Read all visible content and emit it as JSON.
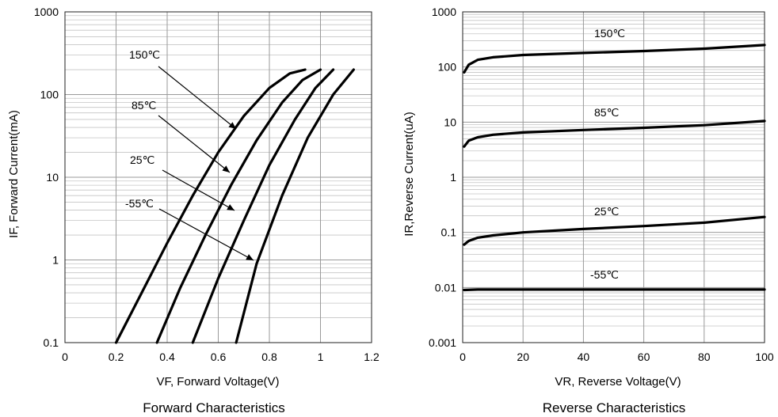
{
  "chart_data": [
    {
      "type": "line",
      "title": "Forward Characteristics",
      "xlabel": "VF, Forward Voltage(V)",
      "ylabel": "IF, Forward Current(mA)",
      "xlim": [
        0,
        1.2
      ],
      "ylim": [
        0.1,
        1000
      ],
      "yscale": "log",
      "grid": true,
      "xticks": [
        "0",
        "0.2",
        "0.4",
        "0.6",
        "0.8",
        "1",
        "1.2"
      ],
      "yticks": [
        "0.1",
        "1",
        "10",
        "100",
        "1000"
      ],
      "series": [
        {
          "name": "150℃",
          "x": [
            0.2,
            0.3,
            0.4,
            0.5,
            0.6,
            0.7,
            0.8,
            0.88,
            0.94
          ],
          "y": [
            0.1,
            0.4,
            1.6,
            6,
            20,
            55,
            120,
            180,
            200
          ]
        },
        {
          "name": "85℃",
          "x": [
            0.36,
            0.45,
            0.55,
            0.65,
            0.75,
            0.85,
            0.93,
            1.0
          ],
          "y": [
            0.1,
            0.45,
            2,
            8,
            28,
            80,
            150,
            200
          ]
        },
        {
          "name": "25℃",
          "x": [
            0.5,
            0.6,
            0.7,
            0.8,
            0.9,
            0.98,
            1.05
          ],
          "y": [
            0.1,
            0.6,
            3,
            14,
            50,
            120,
            200
          ]
        },
        {
          "name": "-55℃",
          "x": [
            0.67,
            0.75,
            0.85,
            0.95,
            1.05,
            1.13
          ],
          "y": [
            0.1,
            0.9,
            6,
            30,
            100,
            200
          ]
        }
      ]
    },
    {
      "type": "line",
      "title": "Reverse Characteristics",
      "xlabel": "VR, Reverse Voltage(V)",
      "ylabel": "IR,Reverse Current(uA)",
      "xlim": [
        0,
        100
      ],
      "ylim": [
        0.001,
        1000
      ],
      "yscale": "log",
      "grid": true,
      "xticks": [
        "0",
        "20",
        "40",
        "60",
        "80",
        "100"
      ],
      "yticks": [
        "0.001",
        "0.01",
        "0.1",
        "1",
        "10",
        "100",
        "1000"
      ],
      "series": [
        {
          "name": "150℃",
          "x": [
            0.5,
            2,
            5,
            10,
            20,
            40,
            60,
            80,
            100
          ],
          "y": [
            80,
            110,
            135,
            150,
            165,
            180,
            195,
            215,
            250
          ]
        },
        {
          "name": "85℃",
          "x": [
            0.5,
            2,
            5,
            10,
            20,
            40,
            60,
            80,
            100
          ],
          "y": [
            3.6,
            4.6,
            5.3,
            5.9,
            6.5,
            7.2,
            7.9,
            8.8,
            10.5
          ]
        },
        {
          "name": "25℃",
          "x": [
            0.5,
            2,
            5,
            10,
            20,
            40,
            60,
            80,
            100
          ],
          "y": [
            0.06,
            0.07,
            0.08,
            0.088,
            0.1,
            0.115,
            0.13,
            0.15,
            0.19
          ]
        },
        {
          "name": "-55℃",
          "x": [
            0.5,
            5,
            20,
            40,
            60,
            80,
            100
          ],
          "y": [
            0.009,
            0.0092,
            0.0092,
            0.0092,
            0.0092,
            0.0092,
            0.0092
          ]
        }
      ]
    }
  ]
}
